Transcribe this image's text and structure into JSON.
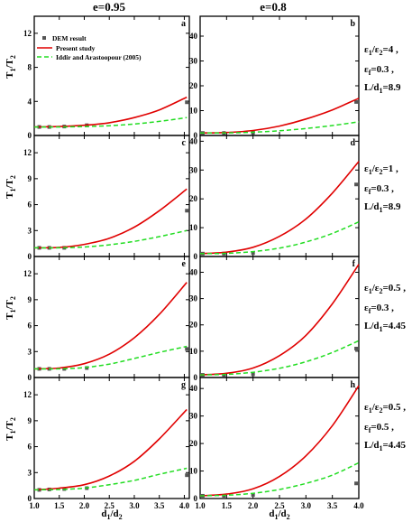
{
  "figure": {
    "column_titles": [
      "e=0.95",
      "e=0.8"
    ],
    "ylabel": {
      "main": "T",
      "sub1": "1",
      "mid": "/T",
      "sub2": "2"
    },
    "xlabel": {
      "main": "d",
      "sub1": "1",
      "mid": "/d",
      "sub2": "2"
    },
    "legend": {
      "dem": "DEM result",
      "present": "Present study",
      "iddir": "Iddir and Arastoopour (2005)"
    },
    "colors": {
      "present": "#e00000",
      "iddir": "#22dd22",
      "dem": "#555555",
      "axis": "#000000"
    }
  },
  "row_params": [
    [
      {
        "a": "ε",
        "b": "1",
        "c": "/ε",
        "d": "2",
        "e": "=4 ,"
      },
      {
        "a": "ε",
        "b": "f",
        "c": "",
        "d": "",
        "e": "=0.3 ,"
      },
      {
        "a": "L/d",
        "b": "1",
        "c": "",
        "d": "",
        "e": "=8.9"
      }
    ],
    [
      {
        "a": "ε",
        "b": "1",
        "c": "/ε",
        "d": "2",
        "e": "=1 ,"
      },
      {
        "a": "ε",
        "b": "f",
        "c": "",
        "d": "",
        "e": "=0.3 ,"
      },
      {
        "a": "L/d",
        "b": "1",
        "c": "",
        "d": "",
        "e": "=8.9"
      }
    ],
    [
      {
        "a": "ε",
        "b": "1",
        "c": "/ε",
        "d": "2",
        "e": "=0.5 ,"
      },
      {
        "a": "ε",
        "b": "f",
        "c": "",
        "d": "",
        "e": "=0.3 ,"
      },
      {
        "a": "L/d",
        "b": "1",
        "c": "",
        "d": "",
        "e": "=4.45"
      }
    ],
    [
      {
        "a": "ε",
        "b": "1",
        "c": "/ε",
        "d": "2",
        "e": "=0.5 ,"
      },
      {
        "a": "ε",
        "b": "f",
        "c": "",
        "d": "",
        "e": "=0.5 ,"
      },
      {
        "a": "L/d",
        "b": "1",
        "c": "",
        "d": "",
        "e": "=4.45"
      }
    ]
  ],
  "chart_data": [
    {
      "type": "line",
      "panel": "a",
      "xlim": [
        1.0,
        4.1
      ],
      "ylim": [
        0,
        14
      ],
      "yticks": [
        0,
        4,
        8,
        12
      ],
      "series": [
        {
          "name": "DEM result",
          "x": [
            1.1,
            1.3,
            1.6,
            2.05,
            4.05
          ],
          "y": [
            1.0,
            1.0,
            1.05,
            1.2,
            3.9
          ]
        },
        {
          "name": "Present study",
          "x": [
            1.0,
            1.5,
            2.0,
            2.5,
            3.0,
            3.5,
            4.05
          ],
          "y": [
            1.0,
            1.05,
            1.2,
            1.5,
            2.1,
            3.0,
            4.5
          ]
        },
        {
          "name": "Iddir and Arastoopour (2005)",
          "x": [
            1.0,
            1.5,
            2.0,
            2.5,
            3.0,
            3.5,
            4.05
          ],
          "y": [
            1.0,
            1.0,
            1.05,
            1.15,
            1.35,
            1.65,
            2.1
          ]
        }
      ]
    },
    {
      "type": "line",
      "panel": "b",
      "xlim": [
        1.0,
        4.0
      ],
      "ylim": [
        0,
        48
      ],
      "yticks": [
        0,
        10,
        20,
        30,
        40
      ],
      "series": [
        {
          "name": "DEM result",
          "x": [
            1.05,
            1.45,
            2.0,
            3.95
          ],
          "y": [
            1.0,
            1.0,
            1.1,
            13.5
          ]
        },
        {
          "name": "Present study",
          "x": [
            1.0,
            1.5,
            2.0,
            2.5,
            3.0,
            3.5,
            4.0
          ],
          "y": [
            1.0,
            1.2,
            2.0,
            3.8,
            6.6,
            10.3,
            15.0
          ]
        },
        {
          "name": "Iddir and Arastoopour (2005)",
          "x": [
            1.0,
            1.5,
            2.0,
            2.5,
            3.0,
            3.5,
            4.0
          ],
          "y": [
            1.0,
            1.05,
            1.3,
            1.9,
            2.8,
            4.0,
            5.5
          ]
        }
      ]
    },
    {
      "type": "line",
      "panel": "c",
      "xlim": [
        1.0,
        4.1
      ],
      "ylim": [
        0,
        14
      ],
      "yticks": [
        0,
        3,
        6,
        9,
        12
      ],
      "series": [
        {
          "name": "DEM result",
          "x": [
            1.1,
            1.3,
            1.6,
            4.05
          ],
          "y": [
            1.0,
            1.0,
            1.0,
            5.3
          ]
        },
        {
          "name": "Present study",
          "x": [
            1.0,
            1.5,
            2.0,
            2.5,
            3.0,
            3.5,
            4.05
          ],
          "y": [
            1.0,
            1.05,
            1.4,
            2.1,
            3.4,
            5.3,
            7.8
          ]
        },
        {
          "name": "Iddir and Arastoopour (2005)",
          "x": [
            1.0,
            1.5,
            2.0,
            2.5,
            3.0,
            3.5,
            4.05
          ],
          "y": [
            1.0,
            1.0,
            1.1,
            1.35,
            1.75,
            2.3,
            3.0
          ]
        }
      ]
    },
    {
      "type": "line",
      "panel": "d",
      "xlim": [
        1.0,
        4.0
      ],
      "ylim": [
        0,
        42
      ],
      "yticks": [
        0,
        10,
        20,
        30,
        40
      ],
      "series": [
        {
          "name": "DEM result",
          "x": [
            1.05,
            1.45,
            2.0,
            3.95
          ],
          "y": [
            1.0,
            1.0,
            1.2,
            25.0
          ]
        },
        {
          "name": "Present study",
          "x": [
            1.0,
            1.5,
            2.0,
            2.5,
            3.0,
            3.5,
            4.0
          ],
          "y": [
            1.0,
            1.5,
            3.2,
            7.0,
            13.0,
            22.0,
            33.0
          ]
        },
        {
          "name": "Iddir and Arastoopour (2005)",
          "x": [
            1.0,
            1.5,
            2.0,
            2.5,
            3.0,
            3.5,
            4.0
          ],
          "y": [
            1.0,
            1.1,
            1.7,
            2.9,
            5.0,
            8.0,
            12.0
          ]
        }
      ]
    },
    {
      "type": "line",
      "panel": "e",
      "xlim": [
        1.0,
        4.1
      ],
      "ylim": [
        0,
        14
      ],
      "yticks": [
        0,
        3,
        6,
        9,
        12
      ],
      "series": [
        {
          "name": "DEM result",
          "x": [
            1.1,
            1.3,
            1.6,
            2.05,
            4.05
          ],
          "y": [
            1.0,
            1.0,
            1.0,
            1.1,
            3.3
          ]
        },
        {
          "name": "Present study",
          "x": [
            1.0,
            1.5,
            2.0,
            2.5,
            3.0,
            3.5,
            4.05
          ],
          "y": [
            1.0,
            1.1,
            1.6,
            2.7,
            4.6,
            7.3,
            11.0
          ]
        },
        {
          "name": "Iddir and Arastoopour (2005)",
          "x": [
            1.0,
            1.5,
            2.0,
            2.5,
            3.0,
            3.5,
            4.05
          ],
          "y": [
            1.0,
            1.0,
            1.15,
            1.55,
            2.2,
            2.9,
            3.6
          ]
        }
      ]
    },
    {
      "type": "line",
      "panel": "f",
      "xlim": [
        1.0,
        4.0
      ],
      "ylim": [
        0,
        46
      ],
      "yticks": [
        0,
        10,
        20,
        30,
        40
      ],
      "series": [
        {
          "name": "DEM result",
          "x": [
            1.05,
            1.45,
            2.0,
            3.95
          ],
          "y": [
            1.0,
            1.0,
            1.2,
            11.0
          ]
        },
        {
          "name": "Present study",
          "x": [
            1.0,
            1.5,
            2.0,
            2.5,
            3.0,
            3.5,
            4.0
          ],
          "y": [
            1.0,
            1.6,
            3.6,
            8.3,
            16.0,
            28.0,
            43.0
          ]
        },
        {
          "name": "Iddir and Arastoopour (2005)",
          "x": [
            1.0,
            1.5,
            2.0,
            2.5,
            3.0,
            3.5,
            4.0
          ],
          "y": [
            1.0,
            1.2,
            2.0,
            3.5,
            6.0,
            9.5,
            14.0
          ]
        }
      ]
    },
    {
      "type": "line",
      "panel": "g",
      "xlim": [
        1.0,
        4.1
      ],
      "ylim": [
        0,
        14
      ],
      "yticks": [
        0,
        3,
        6,
        9,
        12
      ],
      "series": [
        {
          "name": "DEM result",
          "x": [
            1.1,
            1.3,
            1.6,
            2.05,
            4.05
          ],
          "y": [
            1.0,
            1.05,
            1.1,
            1.2,
            2.7
          ]
        },
        {
          "name": "Present study",
          "x": [
            1.0,
            1.5,
            2.0,
            2.5,
            3.0,
            3.5,
            4.05
          ],
          "y": [
            1.0,
            1.2,
            1.6,
            2.6,
            4.3,
            6.9,
            10.3
          ]
        },
        {
          "name": "Iddir and Arastoopour (2005)",
          "x": [
            1.0,
            1.5,
            2.0,
            2.5,
            3.0,
            3.5,
            4.05
          ],
          "y": [
            1.0,
            1.05,
            1.2,
            1.6,
            2.1,
            2.8,
            3.5
          ]
        }
      ]
    },
    {
      "type": "line",
      "panel": "h",
      "xlim": [
        1.0,
        4.0
      ],
      "ylim": [
        0,
        44
      ],
      "yticks": [
        0,
        10,
        20,
        30,
        40
      ],
      "series": [
        {
          "name": "DEM result",
          "x": [
            1.05,
            1.45,
            2.0,
            3.95
          ],
          "y": [
            1.0,
            1.0,
            1.3,
            5.5
          ]
        },
        {
          "name": "Present study",
          "x": [
            1.0,
            1.5,
            2.0,
            2.5,
            3.0,
            3.5,
            4.0
          ],
          "y": [
            1.0,
            1.6,
            3.5,
            8.0,
            15.5,
            26.5,
            41.0
          ]
        },
        {
          "name": "Iddir and Arastoopour (2005)",
          "x": [
            1.0,
            1.5,
            2.0,
            2.5,
            3.0,
            3.5,
            4.0
          ],
          "y": [
            1.0,
            1.2,
            1.9,
            3.3,
            5.5,
            8.5,
            13.0
          ]
        }
      ]
    }
  ],
  "xticks": [
    "1.0",
    "1.5",
    "2.0",
    "2.5",
    "3.0",
    "3.5",
    "4.0"
  ]
}
